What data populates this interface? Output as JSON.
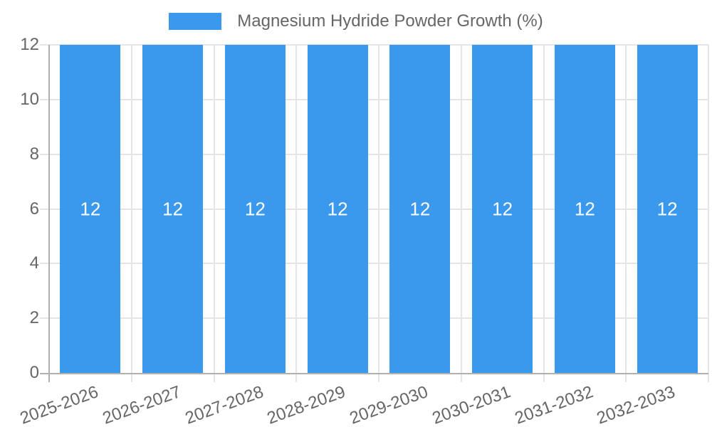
{
  "legend": {
    "label": "Magnesium Hydride Powder Growth (%)"
  },
  "chart_data": {
    "type": "bar",
    "title": "",
    "series_name": "Magnesium Hydride Powder Growth (%)",
    "categories": [
      "2025-2026",
      "2026-2027",
      "2027-2028",
      "2028-2029",
      "2029-2030",
      "2030-2031",
      "2031-2032",
      "2032-2033"
    ],
    "values": [
      12,
      12,
      12,
      12,
      12,
      12,
      12,
      12
    ],
    "bar_value_labels": [
      "12",
      "12",
      "12",
      "12",
      "12",
      "12",
      "12",
      "12"
    ],
    "xlabel": "",
    "ylabel": "",
    "ylim": [
      0,
      12
    ],
    "yticks": [
      0,
      2,
      4,
      6,
      8,
      10,
      12
    ],
    "grid": true,
    "legend_position": "top",
    "x_labels_rotated": true
  },
  "colors": {
    "bar_fill": "#3B99ED",
    "bar_value_label": "#FFFFFF",
    "gridline": "#E5E5E5",
    "axis_line": "#B0B0B0",
    "tick_text": "#666666",
    "legend_text": "#666666",
    "background": "#FFFFFF"
  }
}
